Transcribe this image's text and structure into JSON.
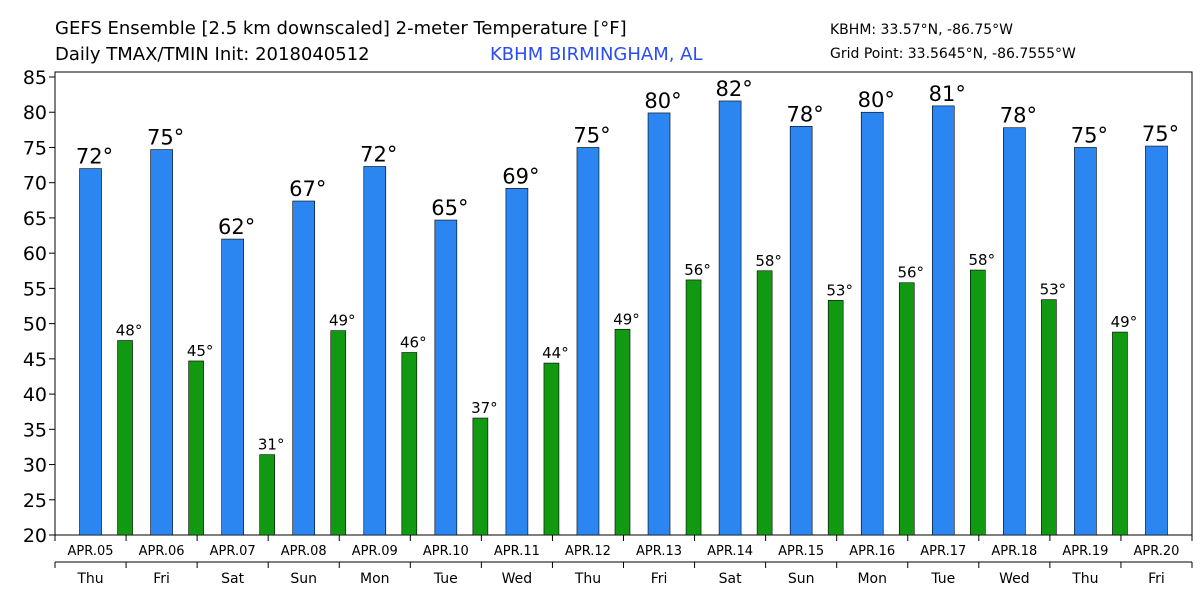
{
  "chart_data": {
    "type": "bar",
    "title": "GEFS Ensemble [2.5 km downscaled] 2-meter Temperature [°F]",
    "subtitle": "Daily TMAX/TMIN Init: 2018040512",
    "location": "KBHM BIRMINGHAM, AL",
    "station": "KBHM: 33.57°N, -86.75°W",
    "grid_point": "Grid Point: 33.5645°N, -86.7555°W",
    "categories": [
      "APR.05",
      "APR.06",
      "APR.07",
      "APR.08",
      "APR.09",
      "APR.10",
      "APR.11",
      "APR.12",
      "APR.13",
      "APR.14",
      "APR.15",
      "APR.16",
      "APR.17",
      "APR.18",
      "APR.19",
      "APR.20"
    ],
    "weekdays": [
      "Thu",
      "Fri",
      "Sat",
      "Sun",
      "Mon",
      "Tue",
      "Wed",
      "Thu",
      "Fri",
      "Sat",
      "Sun",
      "Mon",
      "Tue",
      "Wed",
      "Thu",
      "Fri"
    ],
    "series": [
      {
        "name": "TMAX",
        "color": "#2b86f2",
        "values": [
          72,
          74.7,
          62,
          67.4,
          72.3,
          64.7,
          69.2,
          75,
          79.9,
          81.6,
          78,
          80,
          80.9,
          77.8,
          75,
          75.2
        ],
        "value_labels": [
          "72°",
          "75°",
          "62°",
          "67°",
          "72°",
          "65°",
          "69°",
          "75°",
          "80°",
          "82°",
          "78°",
          "80°",
          "81°",
          "78°",
          "75°",
          "75°"
        ]
      },
      {
        "name": "TMIN",
        "color": "#119a11",
        "values": [
          47.6,
          44.7,
          31.4,
          49,
          45.9,
          36.6,
          44.4,
          49.2,
          56.2,
          57.5,
          53.3,
          55.8,
          57.6,
          53.4,
          48.8,
          null
        ],
        "value_labels": [
          "48°",
          "45°",
          "31°",
          "49°",
          "46°",
          "37°",
          "44°",
          "49°",
          "56°",
          "58°",
          "53°",
          "56°",
          "58°",
          "53°",
          "49°",
          null
        ]
      }
    ],
    "ylim": [
      20,
      85
    ],
    "yticks": [
      20,
      25,
      30,
      35,
      40,
      45,
      50,
      55,
      60,
      65,
      70,
      75,
      80,
      85
    ]
  }
}
